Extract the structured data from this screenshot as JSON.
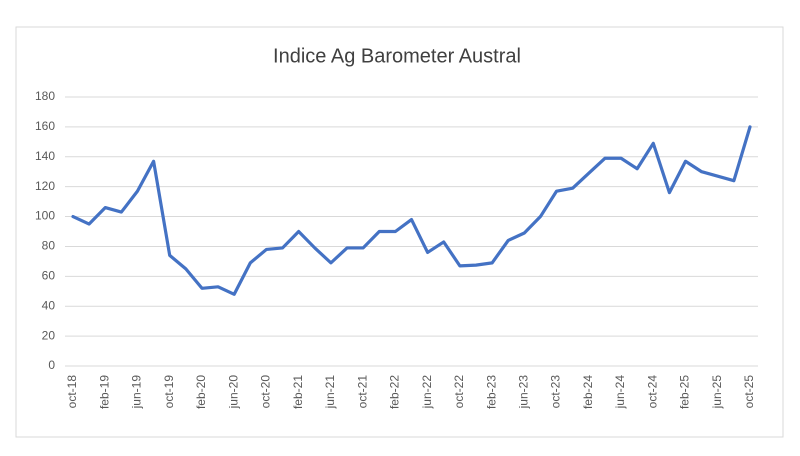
{
  "chart_data": {
    "type": "line",
    "title": "Indice Ag Barometer Austral",
    "categories": [
      "oct-18",
      null,
      "feb-19",
      null,
      "jun-19",
      null,
      "oct-19",
      null,
      "feb-20",
      null,
      "jun-20",
      null,
      "oct-20",
      null,
      "feb-21",
      null,
      "jun-21",
      null,
      "oct-21",
      null,
      "feb-22",
      null,
      "jun-22",
      null,
      "oct-22",
      null,
      "feb-23",
      null,
      "jun-23",
      null,
      "oct-23",
      null,
      "feb-24",
      null,
      "jun-24",
      null,
      "oct-24",
      null,
      "feb-25",
      null,
      "jun-25",
      null,
      "oct-25"
    ],
    "series": [
      {
        "name": "Indice Ag Barometer Austral",
        "color": "#4472c4",
        "values": [
          100,
          95,
          106,
          103,
          117,
          137,
          74,
          65,
          52,
          53,
          48,
          69,
          78,
          79,
          90,
          79,
          69,
          79,
          79,
          90,
          90,
          98,
          76,
          83,
          67,
          67.5,
          69,
          84,
          89,
          100,
          117,
          119,
          129,
          139,
          139,
          132,
          149,
          116,
          137,
          130,
          127,
          124,
          160
        ]
      }
    ],
    "ylim": [
      0,
      180
    ],
    "yticks": [
      0,
      20,
      40,
      60,
      80,
      100,
      120,
      140,
      160,
      180
    ],
    "grid": true
  }
}
